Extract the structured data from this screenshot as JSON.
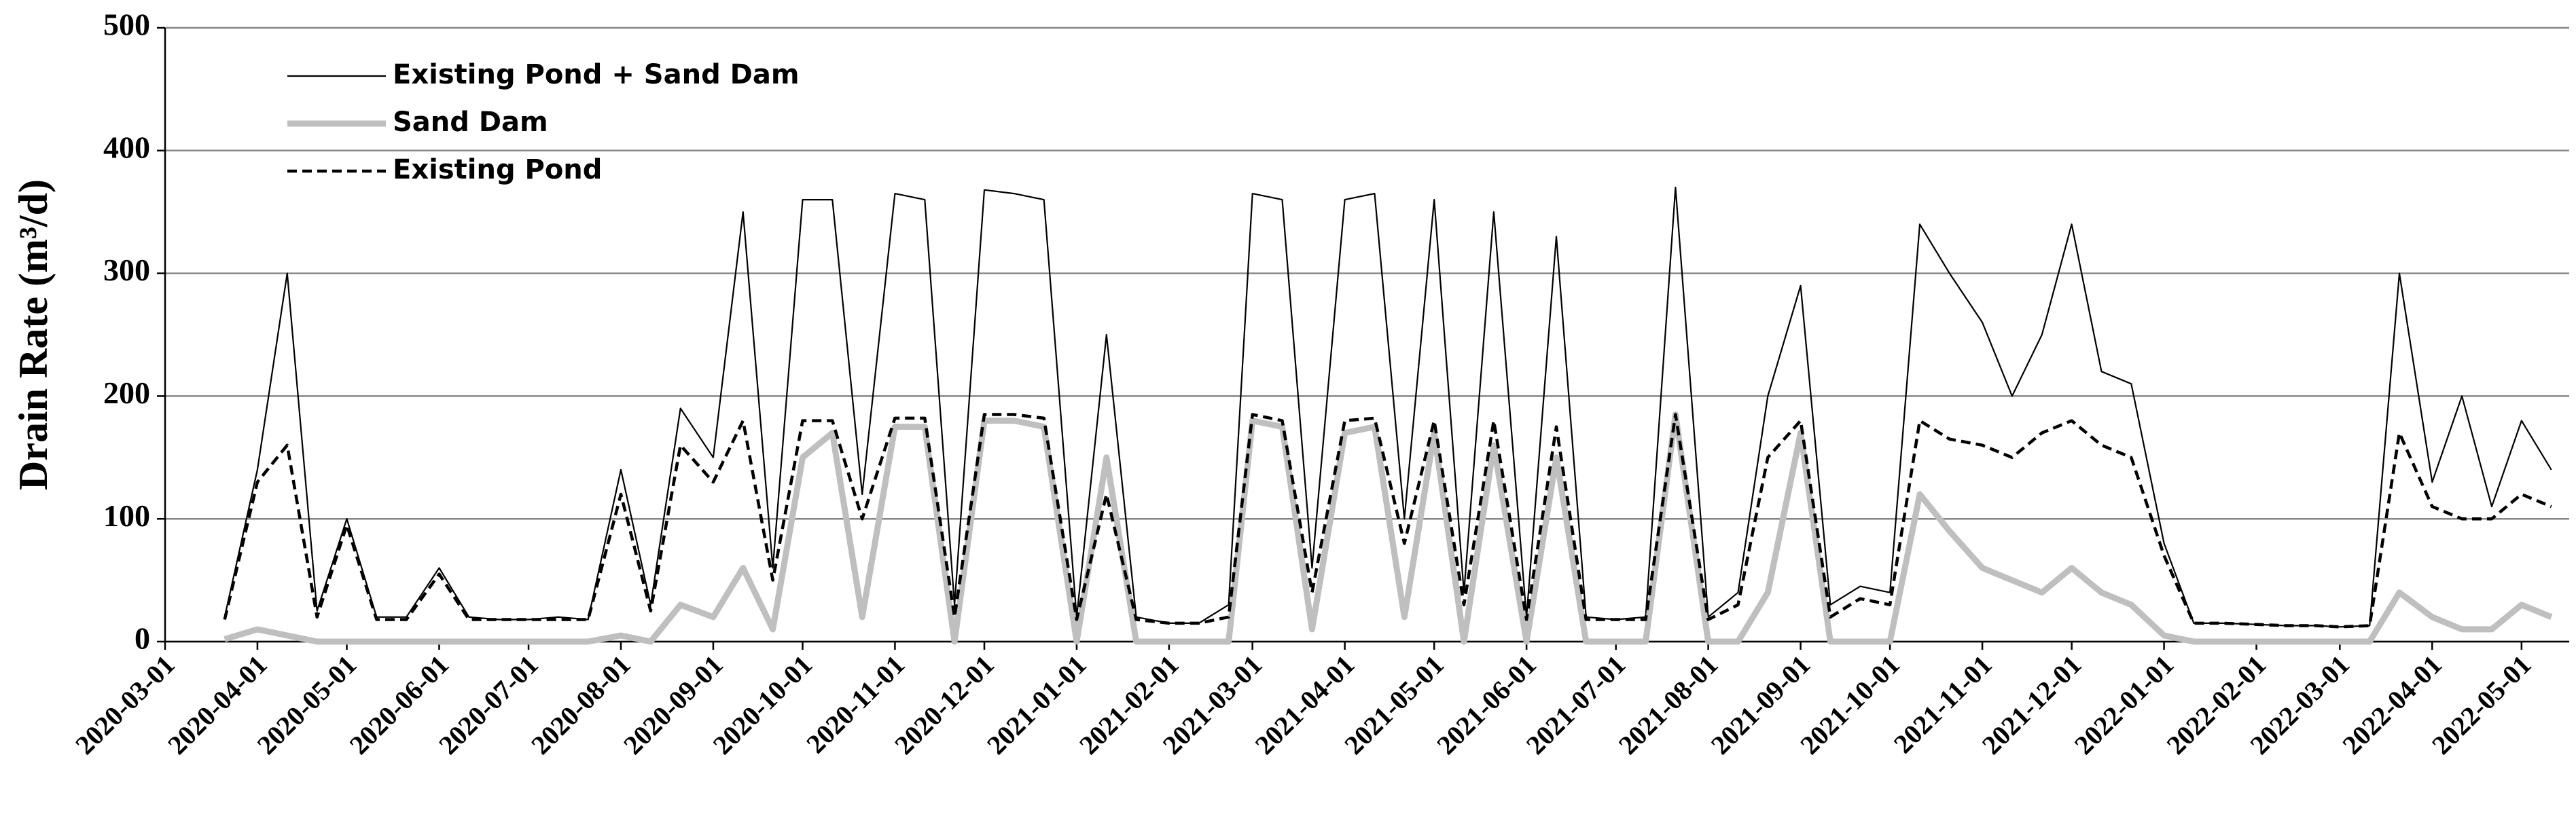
{
  "chart_data": {
    "type": "line",
    "ylabel": "Drain Rate (m³/d)",
    "x": [
      "2020-03-21",
      "2020-04-01",
      "2020-04-11",
      "2020-04-21",
      "2020-05-01",
      "2020-05-11",
      "2020-05-21",
      "2020-06-01",
      "2020-06-11",
      "2020-06-21",
      "2020-07-01",
      "2020-07-11",
      "2020-07-21",
      "2020-08-01",
      "2020-08-11",
      "2020-08-21",
      "2020-09-01",
      "2020-09-11",
      "2020-09-21",
      "2020-10-01",
      "2020-10-11",
      "2020-10-21",
      "2020-11-01",
      "2020-11-11",
      "2020-11-21",
      "2020-12-01",
      "2020-12-11",
      "2020-12-21",
      "2021-01-01",
      "2021-01-11",
      "2021-01-21",
      "2021-02-01",
      "2021-02-11",
      "2021-02-21",
      "2021-03-01",
      "2021-03-11",
      "2021-03-21",
      "2021-04-01",
      "2021-04-11",
      "2021-04-21",
      "2021-05-01",
      "2021-05-11",
      "2021-05-21",
      "2021-06-01",
      "2021-06-11",
      "2021-06-21",
      "2021-07-01",
      "2021-07-11",
      "2021-07-21",
      "2021-08-01",
      "2021-08-11",
      "2021-08-21",
      "2021-09-01",
      "2021-09-11",
      "2021-09-21",
      "2021-10-01",
      "2021-10-11",
      "2021-10-21",
      "2021-11-01",
      "2021-11-11",
      "2021-11-21",
      "2021-12-01",
      "2021-12-11",
      "2021-12-21",
      "2022-01-01",
      "2022-01-11",
      "2022-01-21",
      "2022-02-01",
      "2022-02-11",
      "2022-02-21",
      "2022-03-01",
      "2022-03-11",
      "2022-03-21",
      "2022-04-01",
      "2022-04-11",
      "2022-04-21",
      "2022-05-01",
      "2022-05-11"
    ],
    "series": [
      {
        "name": "Existing Pond + Sand Dam",
        "color": "#000000",
        "linestyle": "solid",
        "values": [
          20,
          140,
          300,
          25,
          100,
          20,
          20,
          60,
          20,
          18,
          18,
          20,
          18,
          140,
          30,
          190,
          150,
          350,
          60,
          360,
          360,
          120,
          365,
          360,
          30,
          368,
          365,
          360,
          20,
          250,
          20,
          15,
          15,
          30,
          365,
          360,
          60,
          360,
          365,
          100,
          360,
          40,
          350,
          20,
          330,
          20,
          18,
          20,
          370,
          20,
          40,
          200,
          290,
          30,
          45,
          40,
          340,
          300,
          260,
          200,
          250,
          340,
          220,
          210,
          80,
          15,
          15,
          14,
          13,
          13,
          12,
          13,
          300,
          130,
          200,
          110,
          180,
          140
        ]
      },
      {
        "name": "Sand Dam",
        "color": "#bfbfbf",
        "linestyle": "thick",
        "values": [
          2,
          10,
          5,
          0,
          0,
          0,
          0,
          0,
          0,
          0,
          0,
          0,
          0,
          5,
          0,
          30,
          20,
          60,
          10,
          150,
          170,
          20,
          175,
          175,
          0,
          180,
          180,
          175,
          0,
          150,
          0,
          0,
          0,
          0,
          180,
          175,
          10,
          170,
          175,
          20,
          170,
          0,
          160,
          0,
          150,
          0,
          0,
          0,
          185,
          0,
          0,
          40,
          170,
          0,
          0,
          0,
          120,
          90,
          60,
          50,
          40,
          60,
          40,
          30,
          5,
          0,
          0,
          0,
          0,
          0,
          0,
          0,
          40,
          20,
          10,
          10,
          30,
          20
        ]
      },
      {
        "name": "Existing Pond",
        "color": "#000000",
        "linestyle": "dashed",
        "values": [
          18,
          130,
          160,
          20,
          95,
          18,
          18,
          55,
          18,
          18,
          18,
          18,
          18,
          120,
          25,
          160,
          130,
          180,
          50,
          180,
          180,
          100,
          182,
          182,
          20,
          185,
          185,
          182,
          18,
          120,
          18,
          15,
          15,
          20,
          185,
          180,
          40,
          180,
          182,
          80,
          180,
          30,
          180,
          18,
          175,
          18,
          18,
          18,
          185,
          18,
          30,
          150,
          180,
          20,
          35,
          30,
          180,
          165,
          160,
          150,
          170,
          180,
          160,
          150,
          70,
          15,
          15,
          14,
          13,
          13,
          12,
          13,
          170,
          110,
          100,
          100,
          120,
          110
        ]
      }
    ],
    "xlim": [
      "2020-03-01",
      "2022-05-17"
    ],
    "xticks": [
      "2020-03-01",
      "2020-04-01",
      "2020-05-01",
      "2020-06-01",
      "2020-07-01",
      "2020-08-01",
      "2020-09-01",
      "2020-10-01",
      "2020-11-01",
      "2020-12-01",
      "2021-01-01",
      "2021-02-01",
      "2021-03-01",
      "2021-04-01",
      "2021-05-01",
      "2021-06-01",
      "2021-07-01",
      "2021-08-01",
      "2021-09-01",
      "2021-10-01",
      "2021-11-01",
      "2021-12-01",
      "2022-01-01",
      "2022-02-01",
      "2022-03-01",
      "2022-04-01",
      "2022-05-01"
    ],
    "ylim": [
      0,
      500
    ],
    "yticks": [
      0,
      100,
      200,
      300,
      400,
      500
    ],
    "grid": true,
    "legend": "upper left"
  }
}
